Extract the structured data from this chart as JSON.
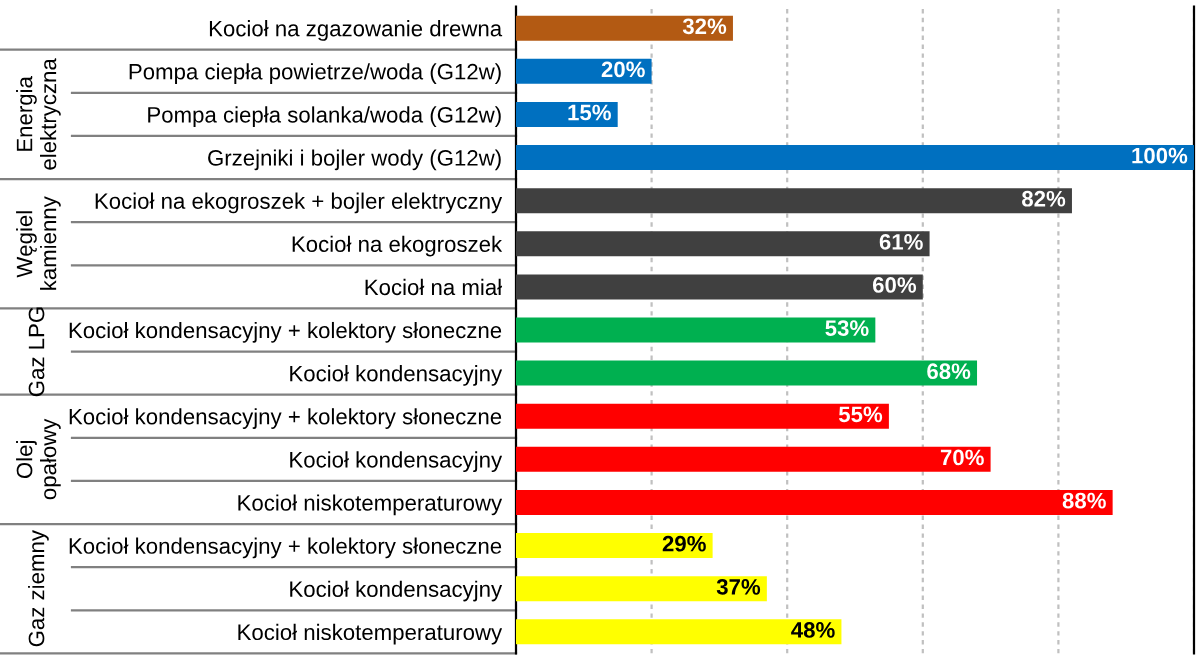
{
  "chart_data": {
    "type": "bar",
    "orientation": "horizontal",
    "categories": [
      "Kocioł na zgazowanie drewna",
      "Pompa ciepła powietrze/woda (G12w)",
      "Pompa ciepła solanka/woda (G12w)",
      "Grzejniki i bojler wody (G12w)",
      "Kocioł na ekogroszek + bojler elektryczny",
      "Kocioł na ekogroszek",
      "Kocioł na miał",
      "Kocioł kondensacyjny + kolektory słoneczne",
      "Kocioł kondensacyjny",
      "Kocioł kondensacyjny + kolektory słoneczne",
      "Kocioł kondensacyjny",
      "Kocioł niskotemperaturowy",
      "Kocioł kondensacyjny + kolektory słoneczne",
      "Kocioł kondensacyjny",
      "Kocioł niskotemperaturowy"
    ],
    "series": [
      {
        "color": "#b35a13",
        "values": [
          32,
          null,
          null,
          null,
          null,
          null,
          null,
          null,
          null,
          null,
          null,
          null,
          null,
          null,
          null
        ],
        "value_labels": [
          "32%",
          null,
          null,
          null,
          null,
          null,
          null,
          null,
          null,
          null,
          null,
          null,
          null,
          null,
          null
        ]
      },
      {
        "name": "Energia elektryczna",
        "color": "#0070c0",
        "values": [
          null,
          20,
          15,
          100,
          null,
          null,
          null,
          null,
          null,
          null,
          null,
          null,
          null,
          null,
          null
        ],
        "value_labels": [
          null,
          "20%",
          "15%",
          "100%",
          null,
          null,
          null,
          null,
          null,
          null,
          null,
          null,
          null,
          null,
          null
        ]
      },
      {
        "name": "Węgiel kamienny",
        "color": "#404040",
        "values": [
          null,
          null,
          null,
          null,
          82,
          61,
          60,
          null,
          null,
          null,
          null,
          null,
          null,
          null,
          null
        ],
        "value_labels": [
          null,
          null,
          null,
          null,
          "82%",
          "61%",
          "60%",
          null,
          null,
          null,
          null,
          null,
          null,
          null,
          null
        ]
      },
      {
        "name": "Gaz LPG",
        "color": "#00b050",
        "values": [
          null,
          null,
          null,
          null,
          null,
          null,
          null,
          53,
          68,
          null,
          null,
          null,
          null,
          null,
          null
        ],
        "value_labels": [
          null,
          null,
          null,
          null,
          null,
          null,
          null,
          "53%",
          "68%",
          null,
          null,
          null,
          null,
          null,
          null
        ]
      },
      {
        "name": "Olej opałowy",
        "color": "#ff0000",
        "values": [
          null,
          null,
          null,
          null,
          null,
          null,
          null,
          null,
          null,
          55,
          70,
          88,
          null,
          null,
          null
        ],
        "value_labels": [
          null,
          null,
          null,
          null,
          null,
          null,
          null,
          null,
          null,
          "55%",
          "70%",
          "88%",
          null,
          null,
          null
        ]
      },
      {
        "name": "Gaz ziemny",
        "color": "#ffff00",
        "values": [
          null,
          null,
          null,
          null,
          null,
          null,
          null,
          null,
          null,
          null,
          null,
          null,
          29,
          37,
          48
        ],
        "value_labels": [
          null,
          null,
          null,
          null,
          null,
          null,
          null,
          null,
          null,
          null,
          null,
          null,
          "29%",
          "37%",
          "48%"
        ]
      }
    ],
    "grid": "x",
    "tick_labels": "y"
  }
}
